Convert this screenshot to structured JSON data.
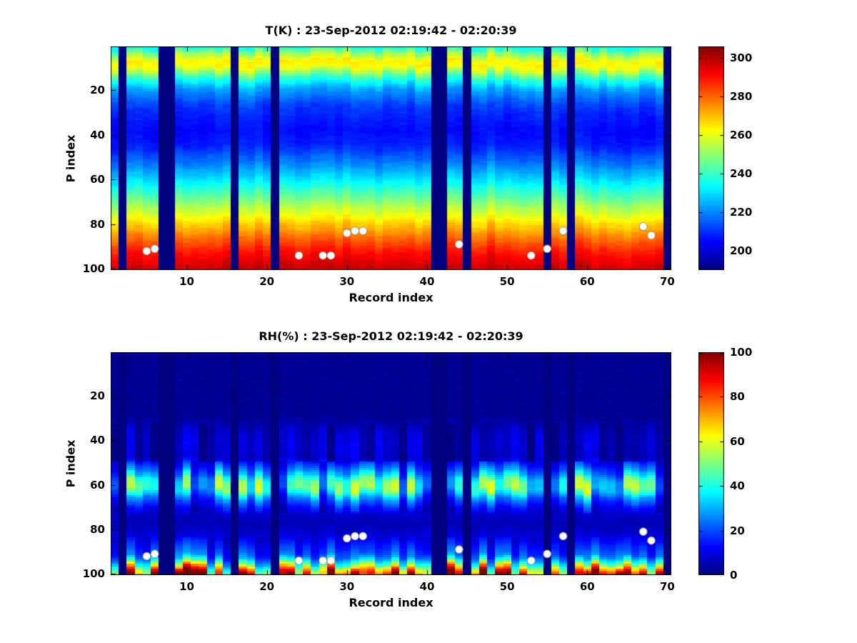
{
  "figure": {
    "background": "#ffffff"
  },
  "chart_data": [
    {
      "type": "heatmap",
      "title": "T(K) : 23-Sep-2012 02:19:42 - 02:20:39",
      "xlabel": "Record index",
      "ylabel": "P index",
      "units": "K",
      "colormap": "jet",
      "x_range": [
        1,
        70
      ],
      "y_range": [
        1,
        100
      ],
      "y_axis_reversed": true,
      "x_ticks": [
        10,
        20,
        30,
        40,
        50,
        60,
        70
      ],
      "y_ticks": [
        20,
        40,
        60,
        80,
        100
      ],
      "caxis": [
        190,
        306
      ],
      "colorbar_ticks": [
        200,
        220,
        240,
        260,
        280,
        300
      ],
      "n_records": 70,
      "n_p": 100,
      "profile_points": [
        [
          1,
          236
        ],
        [
          4,
          252
        ],
        [
          7,
          264
        ],
        [
          10,
          262
        ],
        [
          14,
          241
        ],
        [
          20,
          222
        ],
        [
          28,
          210
        ],
        [
          38,
          205
        ],
        [
          45,
          208
        ],
        [
          55,
          222
        ],
        [
          62,
          234
        ],
        [
          70,
          249
        ],
        [
          78,
          264
        ],
        [
          85,
          277
        ],
        [
          92,
          289
        ],
        [
          100,
          298
        ]
      ],
      "missing_records": [
        2,
        7,
        8,
        16,
        21,
        41,
        42,
        45,
        55,
        58,
        70
      ],
      "noise_seed": 7,
      "dots": [
        [
          5,
          92
        ],
        [
          6,
          91
        ],
        [
          24,
          94
        ],
        [
          27,
          94
        ],
        [
          28,
          94
        ],
        [
          30,
          84
        ],
        [
          31,
          83
        ],
        [
          32,
          83
        ],
        [
          44,
          89
        ],
        [
          53,
          94
        ],
        [
          55,
          91
        ],
        [
          57,
          83
        ],
        [
          67,
          81
        ],
        [
          68,
          85
        ]
      ]
    },
    {
      "type": "heatmap",
      "title": "RH(%) : 23-Sep-2012 02:19:42 - 02:20:39",
      "xlabel": "Record index",
      "ylabel": "P index",
      "units": "%",
      "colormap": "jet",
      "x_range": [
        1,
        70
      ],
      "y_range": [
        1,
        100
      ],
      "y_axis_reversed": true,
      "x_ticks": [
        10,
        20,
        30,
        40,
        50,
        60,
        70
      ],
      "y_ticks": [
        20,
        40,
        60,
        80,
        100
      ],
      "caxis": [
        0,
        100
      ],
      "colorbar_ticks": [
        0,
        20,
        40,
        60,
        80,
        100
      ],
      "n_records": 70,
      "n_p": 100,
      "profile_points": [
        [
          1,
          2
        ],
        [
          30,
          2
        ],
        [
          36,
          8
        ],
        [
          42,
          10
        ],
        [
          48,
          8
        ],
        [
          54,
          22
        ],
        [
          58,
          38
        ],
        [
          62,
          40
        ],
        [
          66,
          22
        ],
        [
          72,
          8
        ],
        [
          78,
          5
        ],
        [
          84,
          10
        ],
        [
          88,
          16
        ],
        [
          92,
          22
        ],
        [
          95,
          40
        ],
        [
          97,
          62
        ],
        [
          99,
          78
        ],
        [
          100,
          85
        ]
      ],
      "missing_records": [
        2,
        7,
        8,
        16,
        21,
        41,
        42,
        45,
        55,
        58,
        70
      ],
      "noise_seed": 13,
      "dots": [
        [
          5,
          92
        ],
        [
          6,
          91
        ],
        [
          24,
          94
        ],
        [
          27,
          94
        ],
        [
          28,
          94
        ],
        [
          30,
          84
        ],
        [
          31,
          83
        ],
        [
          32,
          83
        ],
        [
          44,
          89
        ],
        [
          53,
          94
        ],
        [
          55,
          91
        ],
        [
          57,
          83
        ],
        [
          67,
          81
        ],
        [
          68,
          85
        ]
      ]
    }
  ]
}
